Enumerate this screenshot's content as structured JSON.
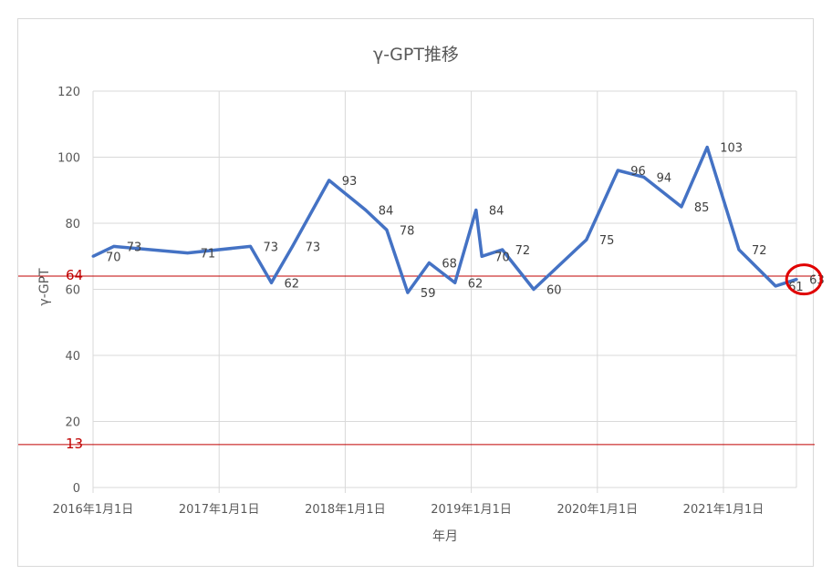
{
  "chart_data": {
    "type": "line",
    "title": "γ-GPT推移",
    "xlabel": "年月",
    "ylabel": "γ-GPT",
    "ylim": [
      0,
      120
    ],
    "yticks": [
      0,
      20,
      40,
      60,
      80,
      100,
      120
    ],
    "xticks": [
      "2016年1月1日",
      "2017年1月1日",
      "2018年1月1日",
      "2019年1月1日",
      "2020年1月1日",
      "2021年1月1日"
    ],
    "grid": true,
    "series_color": "#4472c4",
    "reference_color": "#c00000",
    "highlight_color": "#e00000",
    "reference_lines": [
      {
        "value": 64,
        "label": "64"
      },
      {
        "value": 13,
        "label": "13"
      }
    ],
    "points": [
      {
        "x": "2016-01-01",
        "y": 70
      },
      {
        "x": "2016-03-01",
        "y": 73
      },
      {
        "x": "2016-10-01",
        "y": 71
      },
      {
        "x": "2017-04-01",
        "y": 73
      },
      {
        "x": "2017-06-01",
        "y": 62
      },
      {
        "x": "2017-08-01",
        "y": 73
      },
      {
        "x": "2017-11-15",
        "y": 93
      },
      {
        "x": "2018-03-01",
        "y": 84
      },
      {
        "x": "2018-05-01",
        "y": 78
      },
      {
        "x": "2018-07-01",
        "y": 59
      },
      {
        "x": "2018-09-01",
        "y": 68
      },
      {
        "x": "2018-11-15",
        "y": 62
      },
      {
        "x": "2019-01-15",
        "y": 84
      },
      {
        "x": "2019-02-01",
        "y": 70
      },
      {
        "x": "2019-04-01",
        "y": 72
      },
      {
        "x": "2019-07-01",
        "y": 60
      },
      {
        "x": "2019-12-01",
        "y": 75
      },
      {
        "x": "2020-03-01",
        "y": 96
      },
      {
        "x": "2020-05-15",
        "y": 94
      },
      {
        "x": "2020-09-01",
        "y": 85
      },
      {
        "x": "2020-11-15",
        "y": 103
      },
      {
        "x": "2021-02-15",
        "y": 72
      },
      {
        "x": "2021-06-01",
        "y": 61,
        "label": "61"
      },
      {
        "x": "2021-08-01",
        "y": 63,
        "highlight": true
      }
    ]
  }
}
